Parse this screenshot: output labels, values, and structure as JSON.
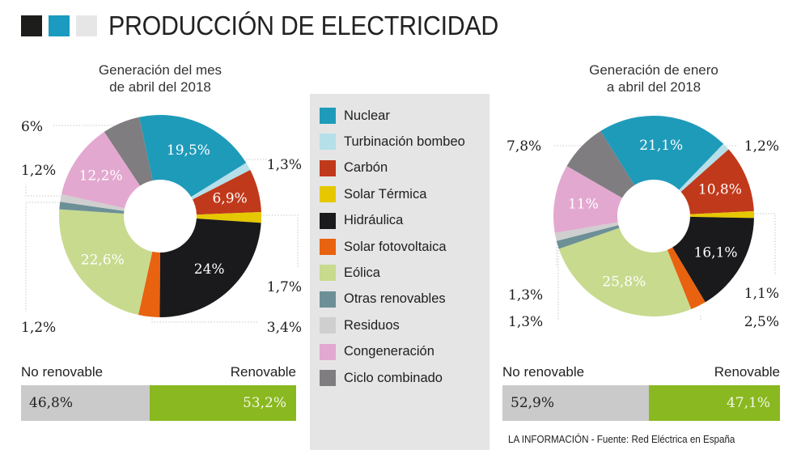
{
  "header": {
    "title": "PRODUCCIÓN DE ELECTRICIDAD",
    "squares": [
      "#1d1d1b",
      "#1a9bbf",
      "#e6e6e6"
    ]
  },
  "legend": [
    {
      "label": "Nuclear",
      "color": "#1f9bba"
    },
    {
      "label": "Turbinación bombeo",
      "color": "#b5dfe9"
    },
    {
      "label": "Carbón",
      "color": "#c1391b"
    },
    {
      "label": "Solar Térmica",
      "color": "#e5c800"
    },
    {
      "label": "Hidráulica",
      "color": "#1a1a1c"
    },
    {
      "label": "Solar fotovoltaica",
      "color": "#e8620f"
    },
    {
      "label": "Eólica",
      "color": "#c8da8e"
    },
    {
      "label": "Otras renovables",
      "color": "#6d9097"
    },
    {
      "label": "Residuos",
      "color": "#cfcfcf"
    },
    {
      "label": "Congeneración",
      "color": "#e3a8d0"
    },
    {
      "label": "Ciclo combinado",
      "color": "#7f7d80"
    }
  ],
  "chart_data": [
    {
      "type": "pie",
      "title": "Generación del mes de abril del 2018",
      "title_lines": [
        "Generación del mes",
        "de abril del 2018"
      ],
      "categories": [
        "Nuclear",
        "Turbinación bombeo",
        "Carbón",
        "Solar Térmica",
        "Hidráulica",
        "Solar fotovoltaica",
        "Eólica",
        "Otras renovables",
        "Residuos",
        "Congeneración",
        "Ciclo combinado"
      ],
      "values": [
        19.5,
        1.3,
        6.9,
        1.7,
        24,
        3.4,
        22.6,
        1.2,
        1.2,
        12.2,
        6
      ],
      "value_labels": [
        "19,5%",
        "1,3%",
        "6,9%",
        "1,7%",
        "24%",
        "3,4%",
        "22,6%",
        "1,2%",
        "1,2%",
        "12,2%",
        "6%"
      ],
      "donut": true,
      "summary": {
        "no_renovable_label": "No renovable",
        "renovable_label": "Renovable",
        "no_renovable": 46.8,
        "renovable": 53.2,
        "no_renovable_text": "46,8%",
        "renovable_text": "53,2%"
      }
    },
    {
      "type": "pie",
      "title": "Generación de enero a abril del 2018",
      "title_lines": [
        "Generación de enero",
        "a abril del 2018"
      ],
      "categories": [
        "Nuclear",
        "Turbinación bombeo",
        "Carbón",
        "Solar Térmica",
        "Hidráulica",
        "Solar fotovoltaica",
        "Eólica",
        "Otras renovables",
        "Residuos",
        "Congeneración",
        "Ciclo combinado"
      ],
      "values": [
        21.1,
        1.2,
        10.8,
        1.1,
        16.1,
        2.5,
        25.8,
        1.3,
        1.3,
        11,
        7.8
      ],
      "value_labels": [
        "21,1%",
        "1,2%",
        "10,8%",
        "1,1%",
        "16,1%",
        "2,5%",
        "25,8%",
        "1,3%",
        "1,3%",
        "11%",
        "7,8%"
      ],
      "donut": true,
      "summary": {
        "no_renovable_label": "No renovable",
        "renovable_label": "Renovable",
        "no_renovable": 52.9,
        "renovable": 47.1,
        "no_renovable_text": "52,9%",
        "renovable_text": "47,1%"
      }
    }
  ],
  "footer": {
    "source": "LA INFORMACIÓN - Fuente: Red Eléctrica en España"
  }
}
